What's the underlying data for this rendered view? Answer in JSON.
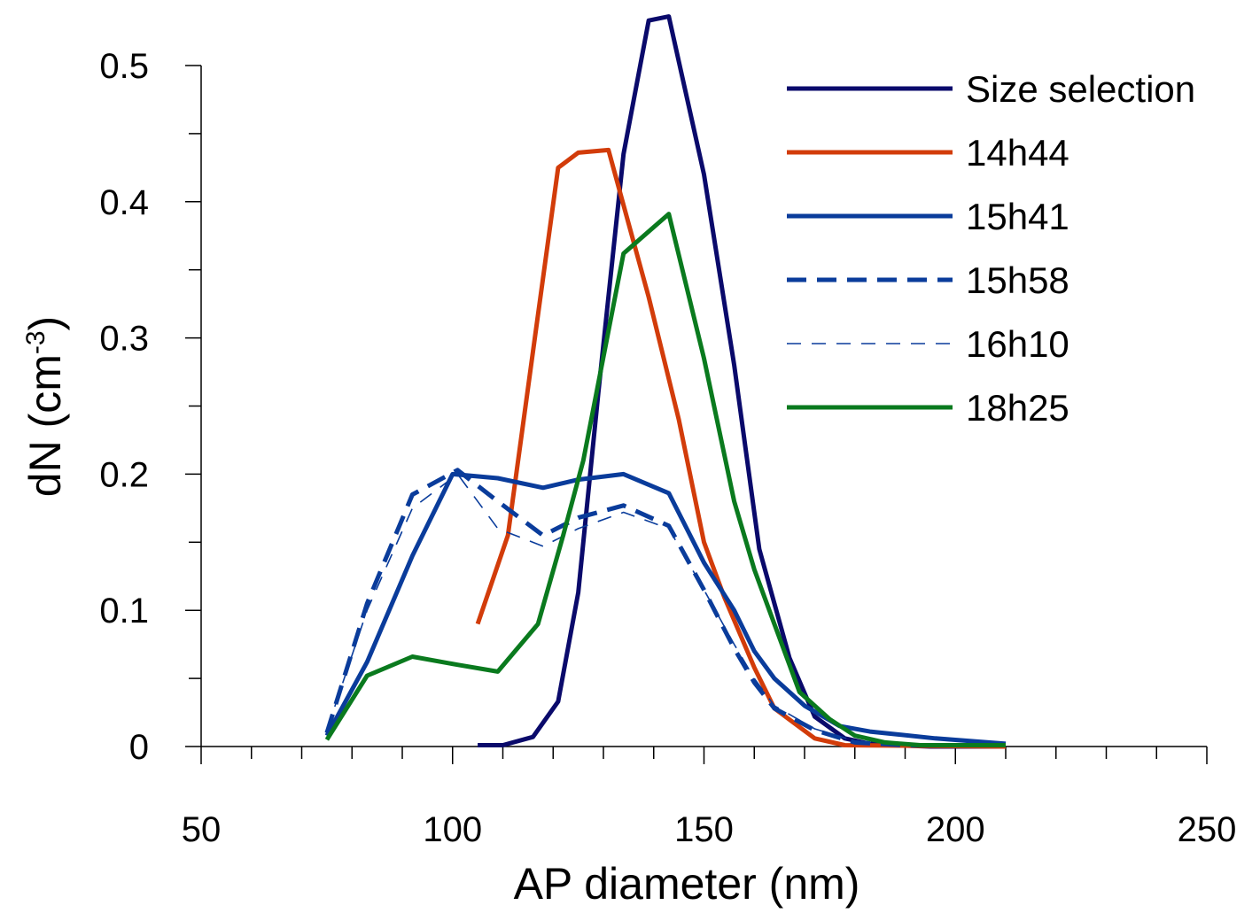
{
  "chart_data": {
    "type": "line",
    "xlabel": "AP diameter (nm)",
    "ylabel_main": "dN (cm",
    "ylabel_sup": "-3",
    "ylabel_end": ")",
    "xlim": [
      50,
      250
    ],
    "ylim": [
      0,
      0.5
    ],
    "x_ticks": [
      50,
      100,
      150,
      200,
      250
    ],
    "x_tick_labels": [
      "50",
      "100",
      "150",
      "200",
      "250"
    ],
    "x_minor_step": 10,
    "y_ticks": [
      0,
      0.1,
      0.2,
      0.3,
      0.4,
      0.5
    ],
    "y_tick_labels": [
      "0",
      "0.1",
      "0.2",
      "0.3",
      "0.4",
      "0.5"
    ],
    "y_minor_step": 0.05,
    "grid": false,
    "legend_position": "top-right",
    "series": [
      {
        "name": "Size selection",
        "color": "#0a0a6b",
        "style": "solid",
        "width": 5,
        "x": [
          105,
          110,
          116,
          121,
          125,
          129,
          134,
          139,
          143,
          150,
          156,
          161,
          167,
          172,
          178,
          183,
          188,
          195,
          210
        ],
        "y": [
          0.001,
          0.001,
          0.007,
          0.033,
          0.113,
          0.26,
          0.435,
          0.533,
          0.536,
          0.42,
          0.28,
          0.145,
          0.065,
          0.022,
          0.006,
          0.002,
          0.001,
          0.0,
          0.0
        ]
      },
      {
        "name": "14h44",
        "color": "#d23c0a",
        "style": "solid",
        "width": 5,
        "x": [
          105,
          111,
          116,
          121,
          125,
          131,
          139,
          145,
          150,
          154,
          160,
          164,
          172,
          178,
          210
        ],
        "y": [
          0.09,
          0.155,
          0.29,
          0.425,
          0.436,
          0.438,
          0.33,
          0.24,
          0.15,
          0.11,
          0.058,
          0.028,
          0.006,
          0.001,
          0.0
        ]
      },
      {
        "name": "15h41",
        "color": "#0a3c9b",
        "style": "solid",
        "width": 5,
        "x": [
          75,
          83,
          92,
          100,
          109,
          118,
          125,
          134,
          143,
          150,
          156,
          160,
          164,
          170,
          177,
          183,
          196,
          210
        ],
        "y": [
          0.008,
          0.062,
          0.14,
          0.2,
          0.197,
          0.19,
          0.196,
          0.2,
          0.186,
          0.135,
          0.1,
          0.07,
          0.05,
          0.03,
          0.015,
          0.011,
          0.006,
          0.002
        ]
      },
      {
        "name": "15h58",
        "color": "#0a3c9b",
        "style": "dashed",
        "width": 5,
        "x": [
          75,
          83,
          92,
          101,
          109,
          118,
          125,
          134,
          143,
          150,
          156,
          160,
          164,
          172,
          180,
          190,
          210
        ],
        "y": [
          0.01,
          0.105,
          0.185,
          0.203,
          0.18,
          0.155,
          0.168,
          0.177,
          0.162,
          0.115,
          0.072,
          0.047,
          0.028,
          0.012,
          0.003,
          0.001,
          0.001
        ]
      },
      {
        "name": "16h10",
        "color": "#0a3c9b",
        "style": "thin-dashed",
        "width": 1.6,
        "x": [
          75,
          83,
          92,
          101,
          109,
          118,
          125,
          134,
          143,
          150,
          156,
          160,
          164,
          172,
          180,
          190,
          210
        ],
        "y": [
          0.012,
          0.1,
          0.175,
          0.2,
          0.16,
          0.147,
          0.16,
          0.172,
          0.16,
          0.115,
          0.075,
          0.05,
          0.03,
          0.013,
          0.004,
          0.001,
          0.001
        ]
      },
      {
        "name": "18h25",
        "color": "#0a7a1e",
        "style": "solid",
        "width": 5,
        "x": [
          75,
          83,
          92,
          101,
          109,
          117,
          122,
          126,
          134,
          143,
          150,
          156,
          160,
          164,
          169,
          175,
          180,
          186,
          193,
          210
        ],
        "y": [
          0.005,
          0.052,
          0.066,
          0.06,
          0.055,
          0.09,
          0.155,
          0.21,
          0.362,
          0.391,
          0.285,
          0.18,
          0.13,
          0.09,
          0.04,
          0.02,
          0.008,
          0.003,
          0.001,
          0.001
        ]
      }
    ]
  }
}
